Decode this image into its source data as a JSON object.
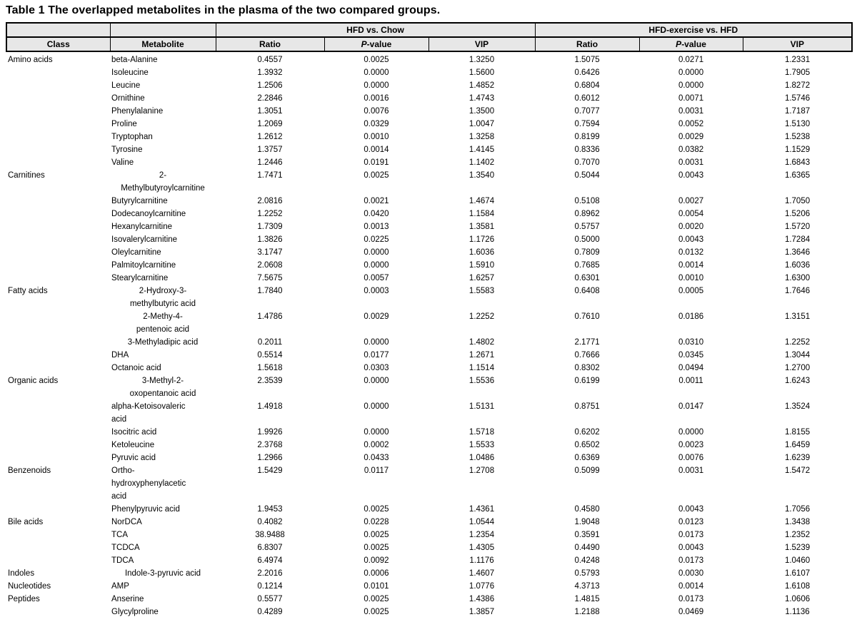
{
  "title": "Table 1 The overlapped metabolites in the plasma of the two compared groups.",
  "colors": {
    "page_bg": "#ffffff",
    "header_bg": "#e7e7e7",
    "border": "#000000",
    "text": "#000000"
  },
  "table": {
    "group_header": {
      "class_spacer": "",
      "metabolite_spacer": "",
      "group1": "HFD vs. Chow",
      "group2": "HFD-exercise vs. HFD"
    },
    "columns": [
      {
        "label": "Class"
      },
      {
        "label": "Metabolite"
      },
      {
        "label": "Ratio"
      },
      {
        "label": "P-value",
        "italic_prefix": "P",
        "rest": "-value"
      },
      {
        "label": "VIP"
      },
      {
        "label": "Ratio"
      },
      {
        "label": "P-value",
        "italic_prefix": "P",
        "rest": "-value"
      },
      {
        "label": "VIP"
      }
    ],
    "rows": [
      {
        "class": "Amino acids",
        "metabolite": "beta-Alanine",
        "align": "left",
        "values": [
          "0.4557",
          "0.0025",
          "1.3250",
          "1.5075",
          "0.0271",
          "1.2331"
        ]
      },
      {
        "class": "",
        "metabolite": "Isoleucine",
        "align": "left",
        "values": [
          "1.3932",
          "0.0000",
          "1.5600",
          "0.6426",
          "0.0000",
          "1.7905"
        ]
      },
      {
        "class": "",
        "metabolite": "Leucine",
        "align": "left",
        "values": [
          "1.2506",
          "0.0000",
          "1.4852",
          "0.6804",
          "0.0000",
          "1.8272"
        ]
      },
      {
        "class": "",
        "metabolite": "Ornithine",
        "align": "left",
        "values": [
          "2.2846",
          "0.0016",
          "1.4743",
          "0.6012",
          "0.0071",
          "1.5746"
        ]
      },
      {
        "class": "",
        "metabolite": "Phenylalanine",
        "align": "left",
        "values": [
          "1.3051",
          "0.0076",
          "1.3500",
          "0.7077",
          "0.0031",
          "1.7187"
        ]
      },
      {
        "class": "",
        "metabolite": "Proline",
        "align": "left",
        "values": [
          "1.2069",
          "0.0329",
          "1.0047",
          "0.7594",
          "0.0052",
          "1.5130"
        ]
      },
      {
        "class": "",
        "metabolite": "Tryptophan",
        "align": "left",
        "values": [
          "1.2612",
          "0.0010",
          "1.3258",
          "0.8199",
          "0.0029",
          "1.5238"
        ]
      },
      {
        "class": "",
        "metabolite": "Tyrosine",
        "align": "left",
        "values": [
          "1.3757",
          "0.0014",
          "1.4145",
          "0.8336",
          "0.0382",
          "1.1529"
        ]
      },
      {
        "class": "",
        "metabolite": "Valine",
        "align": "left",
        "values": [
          "1.2446",
          "0.0191",
          "1.1402",
          "0.7070",
          "0.0031",
          "1.6843"
        ]
      },
      {
        "class": "Carnitines",
        "metabolite": "2-\nMethylbutyroylcarnitine",
        "align": "center",
        "values": [
          "1.7471",
          "0.0025",
          "1.3540",
          "0.5044",
          "0.0043",
          "1.6365"
        ]
      },
      {
        "class": "",
        "metabolite": "Butyrylcarnitine",
        "align": "left",
        "values": [
          "2.0816",
          "0.0021",
          "1.4674",
          "0.5108",
          "0.0027",
          "1.7050"
        ]
      },
      {
        "class": "",
        "metabolite": "Dodecanoylcarnitine",
        "align": "left",
        "values": [
          "1.2252",
          "0.0420",
          "1.1584",
          "0.8962",
          "0.0054",
          "1.5206"
        ]
      },
      {
        "class": "",
        "metabolite": "Hexanylcarnitine",
        "align": "left",
        "values": [
          "1.7309",
          "0.0013",
          "1.3581",
          "0.5757",
          "0.0020",
          "1.5720"
        ]
      },
      {
        "class": "",
        "metabolite": "Isovalerylcarnitine",
        "align": "left",
        "values": [
          "1.3826",
          "0.0225",
          "1.1726",
          "0.5000",
          "0.0043",
          "1.7284"
        ]
      },
      {
        "class": "",
        "metabolite": "Oleylcarnitine",
        "align": "left",
        "values": [
          "3.1747",
          "0.0000",
          "1.6036",
          "0.7809",
          "0.0132",
          "1.3646"
        ]
      },
      {
        "class": "",
        "metabolite": "Palmitoylcarnitine",
        "align": "left",
        "values": [
          "2.0608",
          "0.0000",
          "1.5910",
          "0.7685",
          "0.0014",
          "1.6036"
        ]
      },
      {
        "class": "",
        "metabolite": "Stearylcarnitine",
        "align": "left",
        "values": [
          "7.5675",
          "0.0057",
          "1.6257",
          "0.6301",
          "0.0010",
          "1.6300"
        ]
      },
      {
        "class": "Fatty acids",
        "metabolite": "2-Hydroxy-3-\nmethylbutyric acid",
        "align": "center",
        "values": [
          "1.7840",
          "0.0003",
          "1.5583",
          "0.6408",
          "0.0005",
          "1.7646"
        ]
      },
      {
        "class": "",
        "metabolite": "2-Methy-4-\npentenoic acid",
        "align": "center",
        "values": [
          "1.4786",
          "0.0029",
          "1.2252",
          "0.7610",
          "0.0186",
          "1.3151"
        ]
      },
      {
        "class": "",
        "metabolite": "3-Methyladipic acid",
        "align": "center",
        "values": [
          "0.2011",
          "0.0000",
          "1.4802",
          "2.1771",
          "0.0310",
          "1.2252"
        ]
      },
      {
        "class": "",
        "metabolite": "DHA",
        "align": "left",
        "values": [
          "0.5514",
          "0.0177",
          "1.2671",
          "0.7666",
          "0.0345",
          "1.3044"
        ]
      },
      {
        "class": "",
        "metabolite": "Octanoic acid",
        "align": "left",
        "values": [
          "1.5618",
          "0.0303",
          "1.1514",
          "0.8302",
          "0.0494",
          "1.2700"
        ]
      },
      {
        "class": "Organic acids",
        "metabolite": "3-Methyl-2-\noxopentanoic acid",
        "align": "center",
        "values": [
          "2.3539",
          "0.0000",
          "1.5536",
          "0.6199",
          "0.0011",
          "1.6243"
        ]
      },
      {
        "class": "",
        "metabolite": "alpha-Ketoisovaleric\nacid",
        "align": "left",
        "values": [
          "1.4918",
          "0.0000",
          "1.5131",
          "0.8751",
          "0.0147",
          "1.3524"
        ]
      },
      {
        "class": "",
        "metabolite": "Isocitric acid",
        "align": "left",
        "values": [
          "1.9926",
          "0.0000",
          "1.5718",
          "0.6202",
          "0.0000",
          "1.8155"
        ]
      },
      {
        "class": "",
        "metabolite": "Ketoleucine",
        "align": "left",
        "values": [
          "2.3768",
          "0.0002",
          "1.5533",
          "0.6502",
          "0.0023",
          "1.6459"
        ]
      },
      {
        "class": "",
        "metabolite": "Pyruvic acid",
        "align": "left",
        "values": [
          "1.2966",
          "0.0433",
          "1.0486",
          "0.6369",
          "0.0076",
          "1.6239"
        ]
      },
      {
        "class": "Benzenoids",
        "metabolite": "Ortho-\nhydroxyphenylacetic\nacid",
        "align": "left",
        "values": [
          "1.5429",
          "0.0117",
          "1.2708",
          "0.5099",
          "0.0031",
          "1.5472"
        ]
      },
      {
        "class": "",
        "metabolite": "Phenylpyruvic acid",
        "align": "left",
        "values": [
          "1.9453",
          "0.0025",
          "1.4361",
          "0.4580",
          "0.0043",
          "1.7056"
        ]
      },
      {
        "class": "Bile acids",
        "metabolite": "NorDCA",
        "align": "left",
        "values": [
          "0.4082",
          "0.0228",
          "1.0544",
          "1.9048",
          "0.0123",
          "1.3438"
        ]
      },
      {
        "class": "",
        "metabolite": "TCA",
        "align": "left",
        "values": [
          "38.9488",
          "0.0025",
          "1.2354",
          "0.3591",
          "0.0173",
          "1.2352"
        ]
      },
      {
        "class": "",
        "metabolite": "TCDCA",
        "align": "left",
        "values": [
          "6.8307",
          "0.0025",
          "1.4305",
          "0.4490",
          "0.0043",
          "1.5239"
        ]
      },
      {
        "class": "",
        "metabolite": "TDCA",
        "align": "left",
        "values": [
          "6.4974",
          "0.0092",
          "1.1176",
          "0.4248",
          "0.0173",
          "1.0460"
        ]
      },
      {
        "class": "Indoles",
        "metabolite": "Indole-3-pyruvic acid",
        "align": "center",
        "values": [
          "2.2016",
          "0.0006",
          "1.4607",
          "0.5793",
          "0.0030",
          "1.6107"
        ]
      },
      {
        "class": "Nucleotides",
        "metabolite": "AMP",
        "align": "left",
        "values": [
          "0.1214",
          "0.0101",
          "1.0776",
          "4.3713",
          "0.0014",
          "1.6108"
        ]
      },
      {
        "class": "Peptides",
        "metabolite": "Anserine",
        "align": "left",
        "values": [
          "0.5577",
          "0.0025",
          "1.4386",
          "1.4815",
          "0.0173",
          "1.0606"
        ]
      },
      {
        "class": "",
        "metabolite": "Glycylproline",
        "align": "left",
        "values": [
          "0.4289",
          "0.0025",
          "1.3857",
          "1.2188",
          "0.0469",
          "1.1136"
        ]
      }
    ]
  }
}
